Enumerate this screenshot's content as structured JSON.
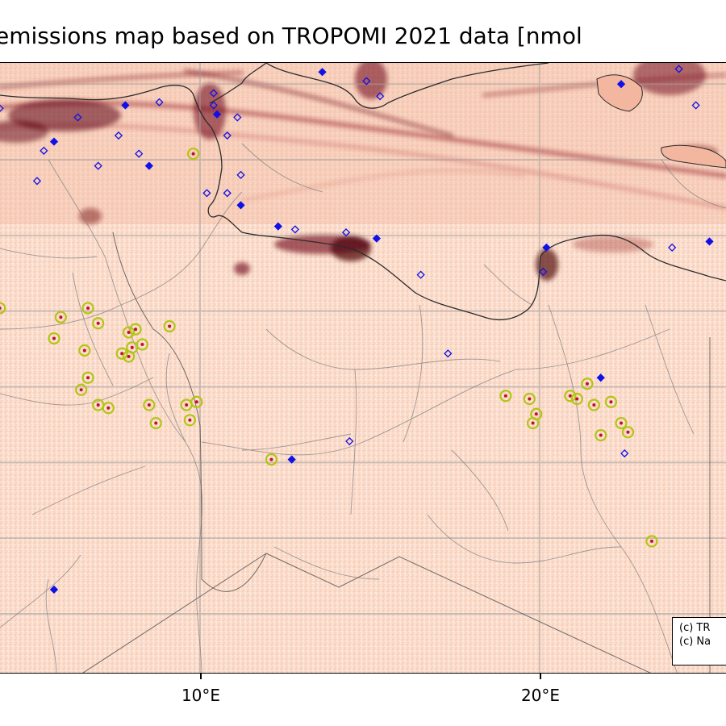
{
  "title": "emissions map based on TROPOMI 2021 data [nmol",
  "axis": {
    "x_ticks": [
      "10°E",
      "20°E"
    ]
  },
  "attribution": {
    "line1": "(c) TR",
    "line2": "(c) Na"
  },
  "colors": {
    "background_emission": "#fbe0d2",
    "emission_dark": "#67000d",
    "emission_mid": "#c83a32",
    "coastline": "#333333",
    "road": "#8a8a8a",
    "gridline": "#9e9e9e",
    "source_marker_blue": "#1010e8",
    "flaring_marker_yellow": "#b4c414",
    "hotspot_red": "#c0102a"
  },
  "map_extent": {
    "lon_range": [
      4.2,
      25.5
    ],
    "lat_range": [
      18.0,
      38.2
    ],
    "gridline_lons": [
      10,
      20
    ],
    "gridline_lats": [
      20,
      22.5,
      25,
      27.5,
      30,
      32.5,
      35,
      37.5
    ]
  },
  "layers": {
    "coastline": "Mediterranean coast of Tunisia and Libya",
    "roads": "road network",
    "emissions": "NOx emission raster"
  },
  "markers": {
    "flaring_sites": [
      {
        "lon": 6.7,
        "lat": 30.1
      },
      {
        "lon": 5.9,
        "lat": 29.8
      },
      {
        "lon": 7.0,
        "lat": 29.6
      },
      {
        "lon": 5.7,
        "lat": 29.1
      },
      {
        "lon": 6.6,
        "lat": 28.7
      },
      {
        "lon": 7.9,
        "lat": 29.3
      },
      {
        "lon": 8.1,
        "lat": 29.4
      },
      {
        "lon": 8.3,
        "lat": 28.9
      },
      {
        "lon": 7.7,
        "lat": 28.6
      },
      {
        "lon": 7.9,
        "lat": 28.5
      },
      {
        "lon": 8.0,
        "lat": 28.8
      },
      {
        "lon": 6.7,
        "lat": 27.8
      },
      {
        "lon": 6.5,
        "lat": 27.4
      },
      {
        "lon": 9.1,
        "lat": 29.5
      },
      {
        "lon": 7.0,
        "lat": 26.9
      },
      {
        "lon": 7.3,
        "lat": 26.8
      },
      {
        "lon": 8.5,
        "lat": 26.9
      },
      {
        "lon": 9.6,
        "lat": 26.9
      },
      {
        "lon": 9.9,
        "lat": 27.0
      },
      {
        "lon": 8.7,
        "lat": 26.3
      },
      {
        "lon": 9.7,
        "lat": 26.4
      },
      {
        "lon": 12.1,
        "lat": 25.1
      },
      {
        "lon": 19.0,
        "lat": 27.2
      },
      {
        "lon": 19.7,
        "lat": 27.1
      },
      {
        "lon": 19.9,
        "lat": 26.6
      },
      {
        "lon": 19.8,
        "lat": 26.3
      },
      {
        "lon": 20.9,
        "lat": 27.2
      },
      {
        "lon": 21.1,
        "lat": 27.1
      },
      {
        "lon": 21.4,
        "lat": 27.6
      },
      {
        "lon": 21.6,
        "lat": 26.9
      },
      {
        "lon": 22.1,
        "lat": 27.0
      },
      {
        "lon": 22.4,
        "lat": 26.3
      },
      {
        "lon": 22.6,
        "lat": 26.0
      },
      {
        "lon": 21.8,
        "lat": 25.9
      },
      {
        "lon": 23.3,
        "lat": 22.4
      },
      {
        "lon": 4.1,
        "lat": 30.1
      },
      {
        "lon": 9.8,
        "lat": 35.2
      }
    ],
    "point_sources": [
      {
        "lon": 15.2,
        "lat": 32.4
      },
      {
        "lon": 14.3,
        "lat": 32.6
      },
      {
        "lon": 12.8,
        "lat": 32.7
      },
      {
        "lon": 12.3,
        "lat": 32.8
      },
      {
        "lon": 10.8,
        "lat": 33.9
      },
      {
        "lon": 10.2,
        "lat": 33.9
      },
      {
        "lon": 11.2,
        "lat": 33.5
      },
      {
        "lon": 11.2,
        "lat": 34.5
      },
      {
        "lon": 10.4,
        "lat": 36.8
      },
      {
        "lon": 10.5,
        "lat": 36.5
      },
      {
        "lon": 10.8,
        "lat": 35.8
      },
      {
        "lon": 11.1,
        "lat": 36.4
      },
      {
        "lon": 20.2,
        "lat": 32.1
      },
      {
        "lon": 20.1,
        "lat": 31.3
      },
      {
        "lon": 14.4,
        "lat": 25.7
      },
      {
        "lon": 12.7,
        "lat": 25.1
      },
      {
        "lon": 16.5,
        "lat": 31.2
      },
      {
        "lon": 17.3,
        "lat": 28.6
      },
      {
        "lon": 21.8,
        "lat": 27.8
      },
      {
        "lon": 22.5,
        "lat": 25.3
      },
      {
        "lon": 23.9,
        "lat": 32.1
      },
      {
        "lon": 25.0,
        "lat": 32.3
      },
      {
        "lon": 4.1,
        "lat": 36.7
      },
      {
        "lon": 6.4,
        "lat": 36.4
      },
      {
        "lon": 7.8,
        "lat": 36.8
      },
      {
        "lon": 8.8,
        "lat": 36.9
      },
      {
        "lon": 7.6,
        "lat": 35.8
      },
      {
        "lon": 5.7,
        "lat": 35.6
      },
      {
        "lon": 5.4,
        "lat": 35.3
      },
      {
        "lon": 8.2,
        "lat": 35.2
      },
      {
        "lon": 8.5,
        "lat": 34.8
      },
      {
        "lon": 7.0,
        "lat": 34.8
      },
      {
        "lon": 5.2,
        "lat": 34.3
      },
      {
        "lon": 13.6,
        "lat": 37.9
      },
      {
        "lon": 14.9,
        "lat": 37.6
      },
      {
        "lon": 15.3,
        "lat": 37.1
      },
      {
        "lon": 22.4,
        "lat": 37.5
      },
      {
        "lon": 24.1,
        "lat": 38.0
      },
      {
        "lon": 24.6,
        "lat": 36.8
      },
      {
        "lon": 5.7,
        "lat": 20.8
      },
      {
        "lon": 10.4,
        "lat": 37.2
      }
    ]
  }
}
